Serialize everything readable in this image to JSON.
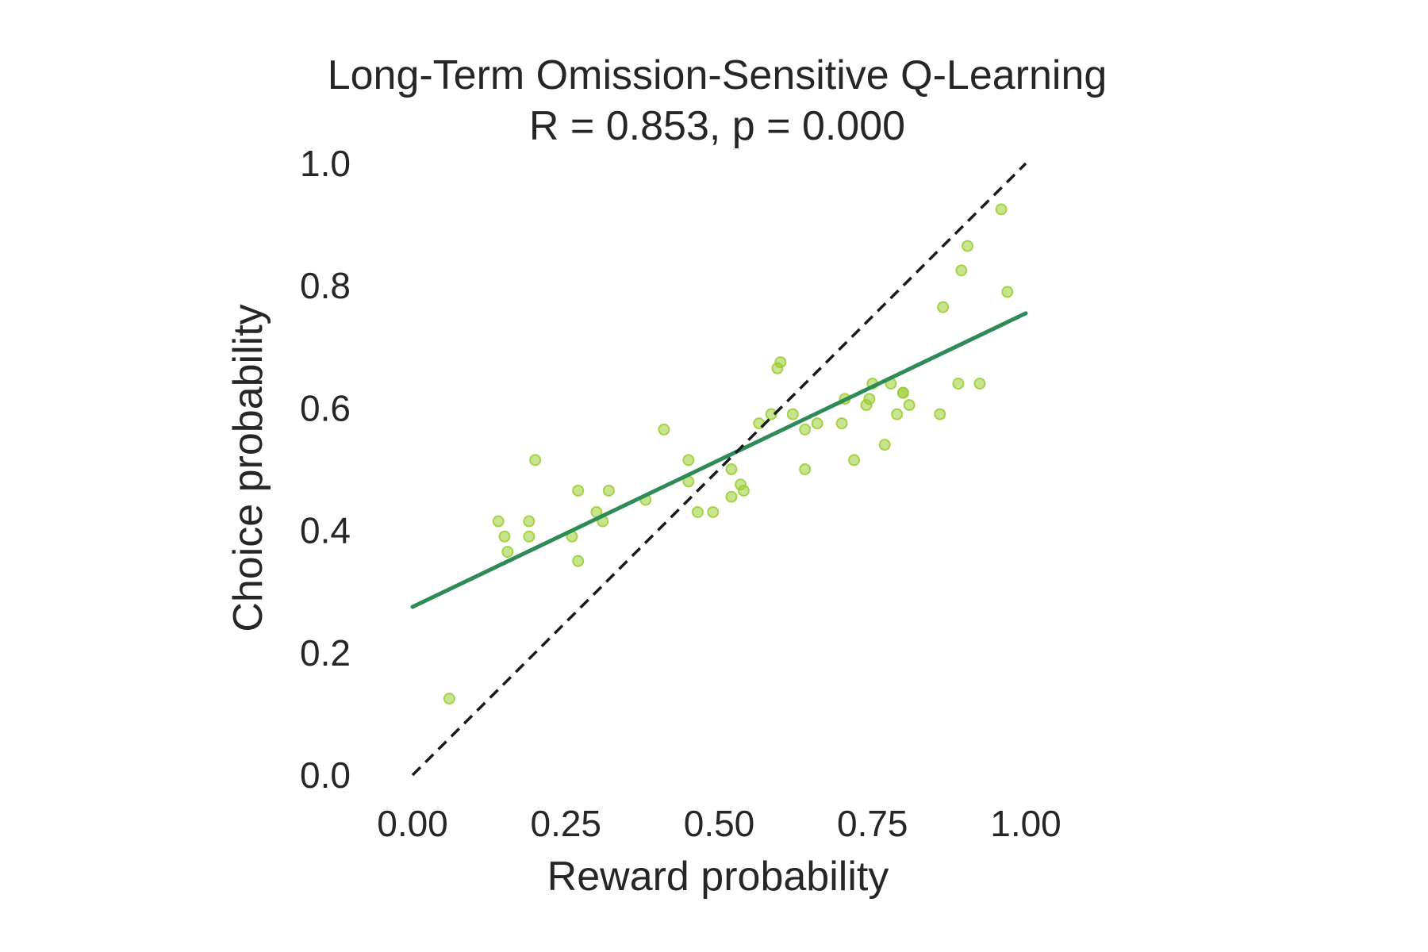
{
  "chart_data": {
    "type": "scatter",
    "title": "Long-Term Omission-Sensitive Q-Learning",
    "subtitle": "R = 0.853, p = 0.000",
    "xlabel": "Reward probability",
    "ylabel": "Choice probability",
    "xlim": [
      0.0,
      1.0
    ],
    "ylim": [
      0.0,
      1.0
    ],
    "xticks": [
      "0.00",
      "0.25",
      "0.50",
      "0.75",
      "1.00"
    ],
    "yticks": [
      "0.0",
      "0.2",
      "0.4",
      "0.6",
      "0.8",
      "1.0"
    ],
    "grid": false,
    "colors": {
      "points": "#9acd32",
      "fit_line": "#2e8b57",
      "identity_line": "#1a1a1a",
      "text": "#262626"
    },
    "series": [
      {
        "kind": "points",
        "x": [
          0.06,
          0.14,
          0.15,
          0.155,
          0.19,
          0.19,
          0.2,
          0.26,
          0.27,
          0.27,
          0.3,
          0.31,
          0.32,
          0.38,
          0.41,
          0.45,
          0.45,
          0.465,
          0.49,
          0.52,
          0.52,
          0.535,
          0.54,
          0.565,
          0.585,
          0.595,
          0.6,
          0.62,
          0.64,
          0.64,
          0.66,
          0.7,
          0.705,
          0.72,
          0.74,
          0.745,
          0.75,
          0.77,
          0.78,
          0.79,
          0.8,
          0.8,
          0.81,
          0.86,
          0.865,
          0.89,
          0.895,
          0.905,
          0.925,
          0.96,
          0.97
        ],
        "y": [
          0.125,
          0.415,
          0.39,
          0.365,
          0.415,
          0.39,
          0.515,
          0.39,
          0.35,
          0.465,
          0.43,
          0.415,
          0.465,
          0.45,
          0.565,
          0.515,
          0.48,
          0.43,
          0.43,
          0.455,
          0.5,
          0.475,
          0.465,
          0.575,
          0.59,
          0.665,
          0.675,
          0.59,
          0.565,
          0.5,
          0.575,
          0.575,
          0.615,
          0.515,
          0.605,
          0.615,
          0.64,
          0.54,
          0.64,
          0.59,
          0.625,
          0.625,
          0.605,
          0.59,
          0.765,
          0.64,
          0.825,
          0.865,
          0.64,
          0.925,
          0.79
        ]
      },
      {
        "kind": "regression-line",
        "x": [
          0.0,
          1.0
        ],
        "y": [
          0.275,
          0.755
        ]
      },
      {
        "kind": "identity-line",
        "x": [
          0.0,
          1.0
        ],
        "y": [
          0.0,
          1.0
        ]
      }
    ]
  }
}
